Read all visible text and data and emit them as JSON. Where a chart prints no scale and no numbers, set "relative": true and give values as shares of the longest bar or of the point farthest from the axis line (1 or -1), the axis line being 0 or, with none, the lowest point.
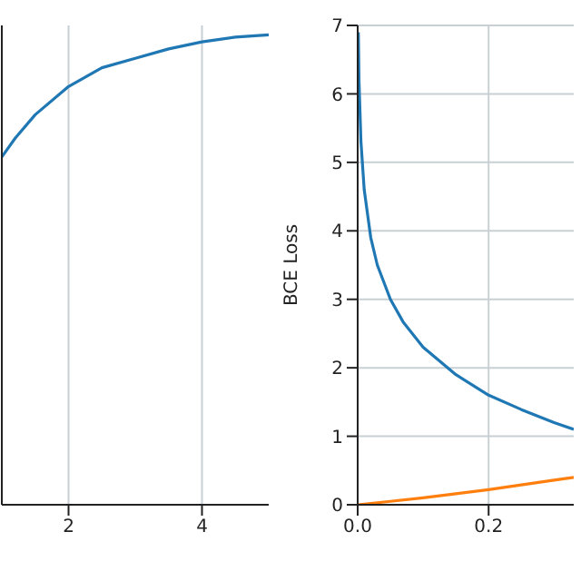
{
  "chart_data": [
    {
      "type": "line",
      "relative": true,
      "xlim": [
        1,
        5
      ],
      "xticks": [
        2,
        4
      ],
      "tick_labels": "x",
      "grid": true,
      "legend": false,
      "marker": "none",
      "series": [
        {
          "color": "#1f77b4",
          "x": [
            1,
            1.2,
            1.5,
            2,
            2.5,
            3,
            3.5,
            4,
            4.5,
            5
          ],
          "values": [
            0.74,
            0.78,
            0.83,
            0.89,
            0.93,
            0.95,
            0.97,
            0.985,
            0.995,
            1
          ]
        }
      ]
    },
    {
      "type": "line",
      "ylabel": "BCE Loss",
      "xlim": [
        0,
        0.33
      ],
      "ylim": [
        0,
        7
      ],
      "xticks": [
        {
          "value": 0,
          "label": "0.0"
        },
        {
          "value": 0.2,
          "label": "0.2"
        }
      ],
      "yticks": [
        0,
        1,
        2,
        3,
        4,
        5,
        6,
        7
      ],
      "grid": true,
      "legend": false,
      "marker": "none",
      "series": [
        {
          "color": "#1f77b4",
          "x": [
            0.001,
            0.002,
            0.005,
            0.01,
            0.02,
            0.03,
            0.05,
            0.07,
            0.1,
            0.15,
            0.2,
            0.25,
            0.3,
            0.33
          ],
          "values": [
            6.9,
            6.2,
            5.3,
            4.6,
            3.9,
            3.5,
            3.0,
            2.66,
            2.3,
            1.9,
            1.6,
            1.39,
            1.2,
            1.1
          ]
        },
        {
          "color": "#ff7f0e",
          "x": [
            0,
            0.05,
            0.1,
            0.15,
            0.2,
            0.25,
            0.3,
            0.33
          ],
          "values": [
            0,
            0.05,
            0.1,
            0.16,
            0.22,
            0.29,
            0.36,
            0.4
          ]
        }
      ]
    }
  ]
}
